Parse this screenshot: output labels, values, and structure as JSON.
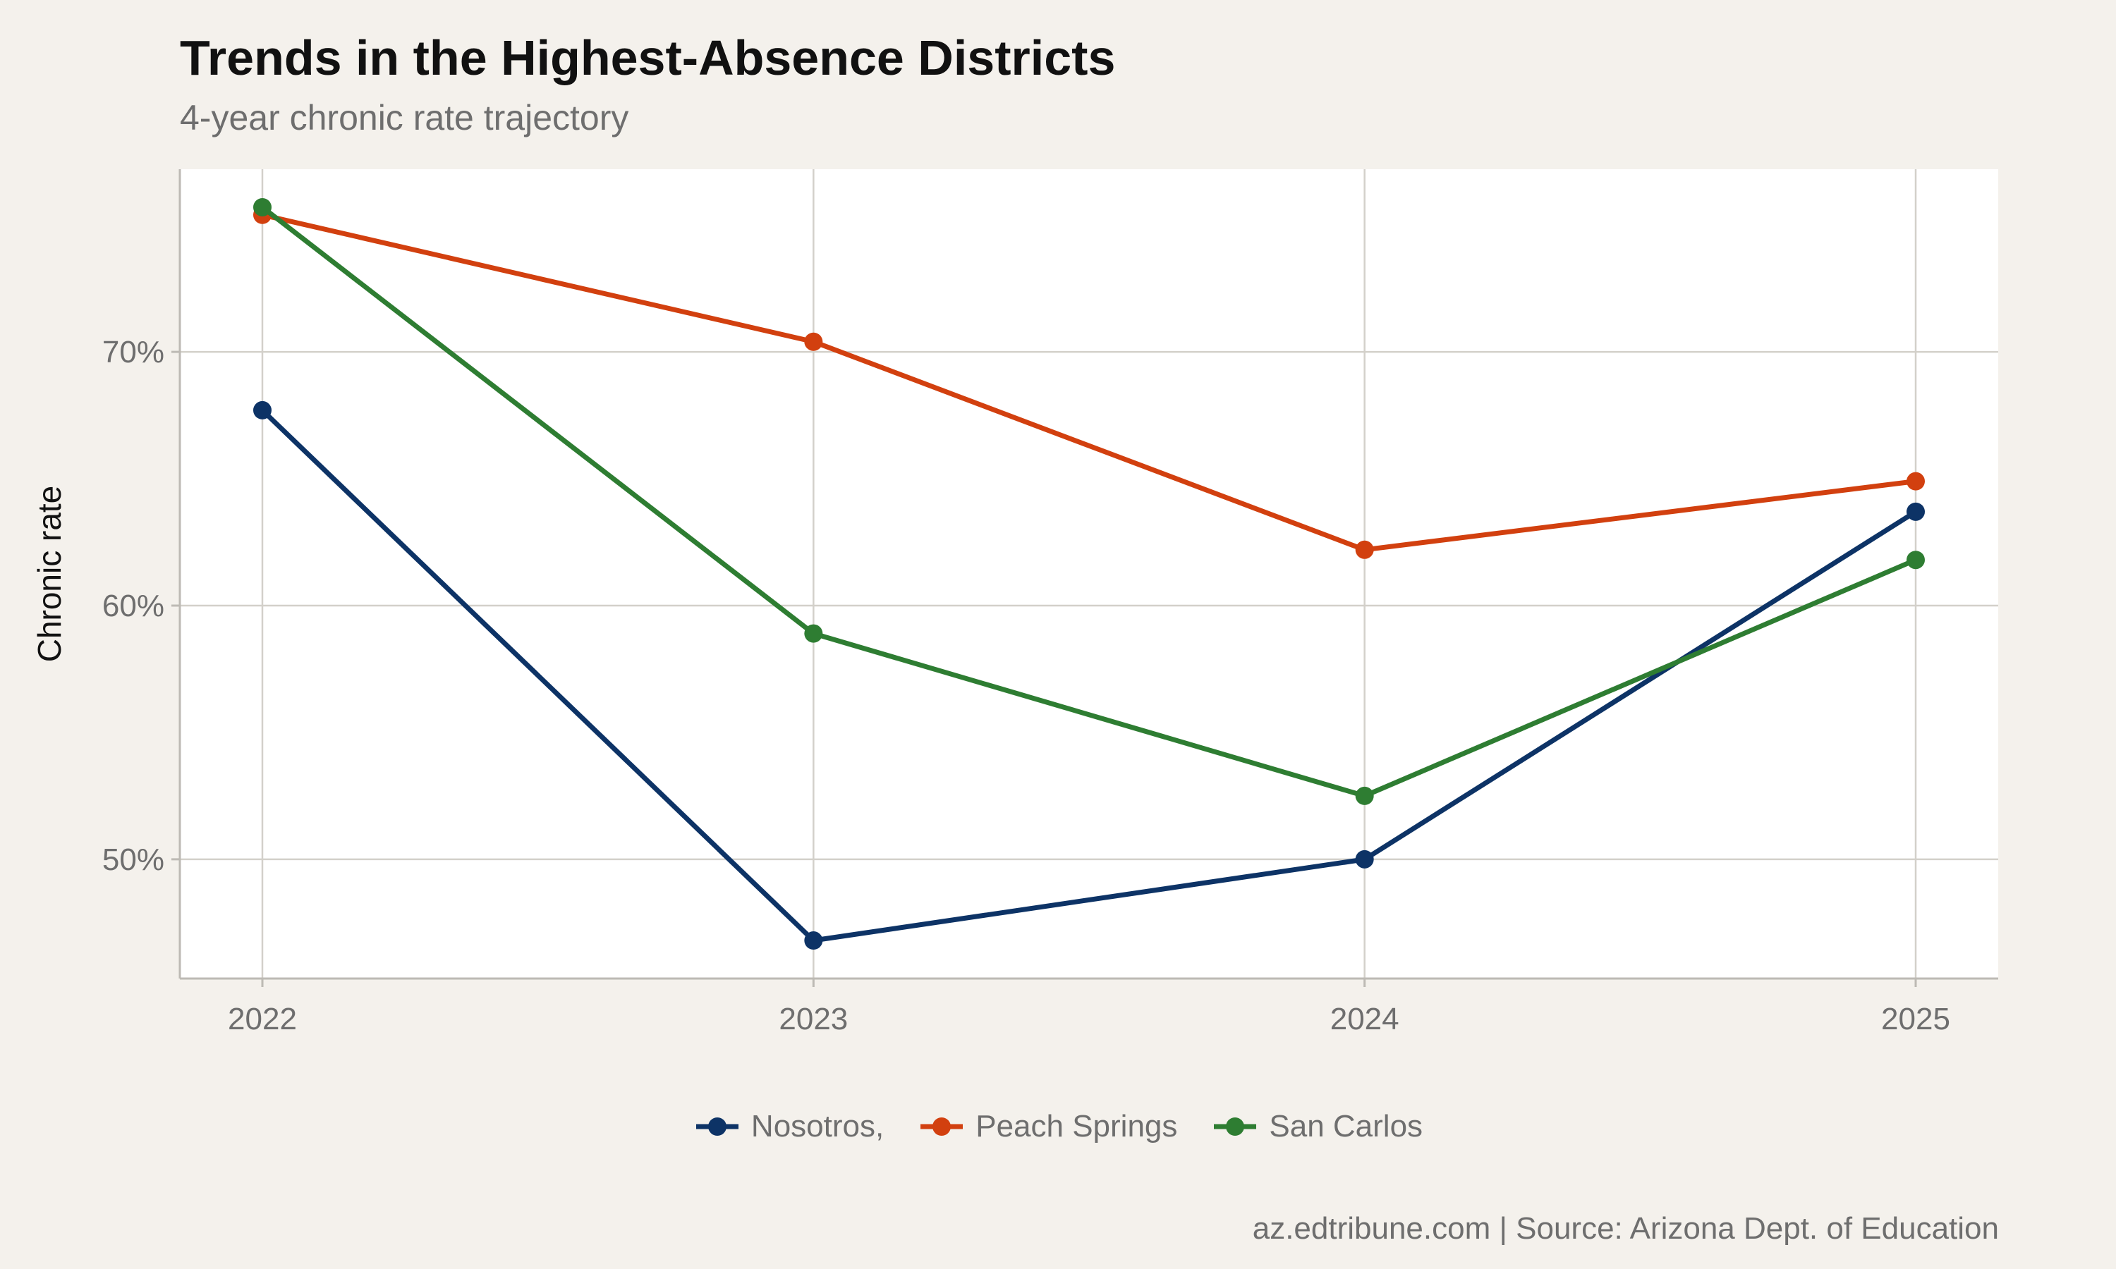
{
  "chart_data": {
    "type": "line",
    "title": "Trends in the Highest-Absence Districts",
    "subtitle": "4-year chronic rate trajectory",
    "xlabel": "",
    "ylabel": "Chronic rate",
    "x": [
      "2022",
      "2023",
      "2024",
      "2025"
    ],
    "yticks": [
      {
        "value": 50,
        "label": "50%"
      },
      {
        "value": 60,
        "label": "60%"
      },
      {
        "value": 70,
        "label": "70%"
      }
    ],
    "ylim": [
      45.3,
      77.2
    ],
    "grid": true,
    "legend_position": "bottom",
    "series": [
      {
        "name": "Nosotros,",
        "color": "#0d3366",
        "values": [
          67.7,
          46.8,
          50.0,
          63.7
        ]
      },
      {
        "name": "Peach Springs",
        "color": "#d2400f",
        "values": [
          75.4,
          70.4,
          62.2,
          64.9
        ]
      },
      {
        "name": "San Carlos",
        "color": "#2e7d32",
        "values": [
          75.7,
          58.9,
          52.5,
          61.8
        ]
      }
    ]
  },
  "caption": "az.edtribune.com | Source: Arizona Dept. of Education"
}
